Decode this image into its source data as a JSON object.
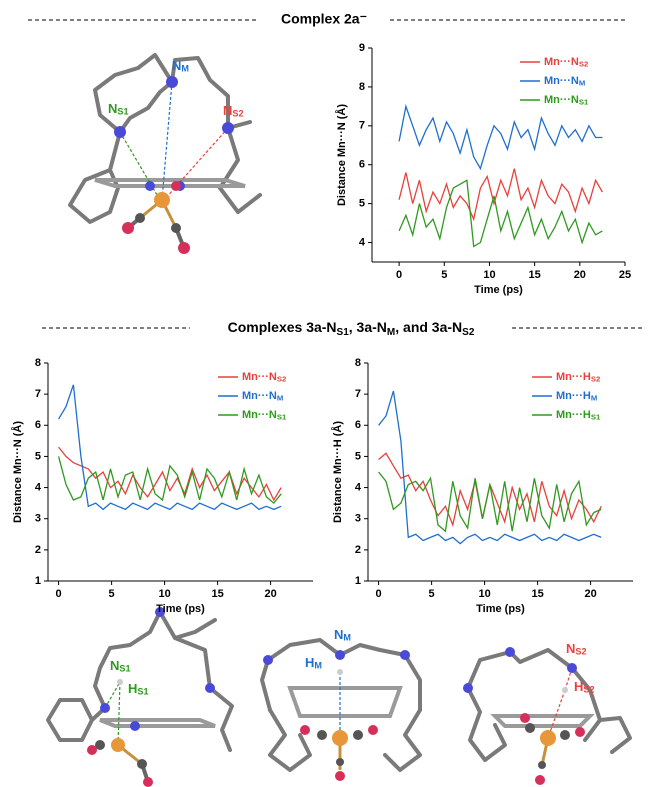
{
  "headers": {
    "top": "Complex 2a⁻",
    "middle": [
      "Complexes 3a-N",
      "S1",
      ", 3a-N",
      "M",
      ", and 3a-N",
      "S2"
    ]
  },
  "molecules": [
    {
      "labels": [
        "NM",
        "NS1",
        "NS2"
      ]
    },
    {
      "labels": [
        "NS1",
        "HS1"
      ]
    },
    {
      "labels": [
        "NM",
        "HM"
      ]
    },
    {
      "labels": [
        "NS2",
        "HS2"
      ]
    }
  ],
  "chart_data": [
    {
      "type": "line",
      "xlabel": "Time (ps)",
      "ylabel": "Distance Mn···N (Å)",
      "x": [
        0,
        0.75,
        1.5,
        2.25,
        3,
        3.75,
        4.5,
        5.25,
        6,
        6.75,
        7.5,
        8.25,
        9,
        9.75,
        10.5,
        11.25,
        12,
        12.75,
        13.5,
        14.25,
        15,
        15.75,
        16.5,
        17.25,
        18,
        18.75,
        19.5,
        20.25,
        21,
        21.75,
        22.5
      ],
      "xlim": [
        -3,
        25
      ],
      "xticks": [
        0,
        5,
        10,
        15,
        20,
        25
      ],
      "ylim": [
        3.5,
        9
      ],
      "yticks": [
        4,
        5,
        6,
        7,
        8,
        9
      ],
      "series": [
        {
          "name": "Mn···NS2",
          "color": "#e8413c",
          "values": [
            5.1,
            5.8,
            5.0,
            5.6,
            4.8,
            5.3,
            5.0,
            5.5,
            4.9,
            5.2,
            5.0,
            4.6,
            5.4,
            5.7,
            5.0,
            5.6,
            5.2,
            5.9,
            5.1,
            5.4,
            4.9,
            5.6,
            5.2,
            5.0,
            5.5,
            5.3,
            4.8,
            5.4,
            5.0,
            5.6,
            5.3
          ]
        },
        {
          "name": "Mn···NM",
          "color": "#1f6fd1",
          "values": [
            6.6,
            7.5,
            7.0,
            6.5,
            6.9,
            7.2,
            6.6,
            7.1,
            6.8,
            6.3,
            6.9,
            6.2,
            5.9,
            6.5,
            7.0,
            6.8,
            6.4,
            7.1,
            6.7,
            6.9,
            6.4,
            7.2,
            6.8,
            6.5,
            7.0,
            6.7,
            6.9,
            6.6,
            7.0,
            6.7,
            6.7
          ]
        },
        {
          "name": "Mn···NS1",
          "color": "#2e9a1e",
          "values": [
            4.3,
            4.7,
            4.2,
            5.0,
            4.4,
            4.6,
            4.1,
            4.9,
            5.4,
            5.5,
            5.6,
            3.9,
            4.0,
            4.6,
            5.2,
            4.3,
            4.8,
            4.1,
            4.5,
            4.9,
            4.2,
            4.6,
            4.1,
            4.4,
            4.8,
            4.3,
            4.6,
            4.0,
            4.5,
            4.2,
            4.3
          ]
        }
      ]
    },
    {
      "type": "line",
      "xlabel": "Time (ps)",
      "ylabel": "Distance Mn···N (Å)",
      "x": [
        0,
        0.7,
        1.4,
        2.1,
        2.8,
        3.5,
        4.2,
        4.9,
        5.6,
        6.3,
        7,
        7.7,
        8.4,
        9.1,
        9.8,
        10.5,
        11.2,
        11.9,
        12.6,
        13.3,
        14,
        14.7,
        15.4,
        16.1,
        16.8,
        17.5,
        18.2,
        18.9,
        19.6,
        20.3,
        21
      ],
      "xlim": [
        -1,
        24
      ],
      "xticks": [
        0,
        5,
        10,
        15,
        20
      ],
      "ylim": [
        1,
        8
      ],
      "yticks": [
        1,
        2,
        3,
        4,
        5,
        6,
        7,
        8
      ],
      "series": [
        {
          "name": "Mn···NS2",
          "color": "#e8413c",
          "values": [
            5.3,
            5.0,
            4.8,
            4.7,
            4.6,
            4.3,
            4.5,
            4.0,
            4.2,
            3.8,
            4.4,
            4.0,
            3.7,
            4.1,
            4.5,
            3.9,
            4.3,
            3.8,
            4.6,
            4.0,
            4.4,
            3.9,
            4.2,
            4.5,
            3.8,
            4.3,
            4.0,
            3.7,
            4.1,
            3.6,
            4.0
          ]
        },
        {
          "name": "Mn···NM",
          "color": "#1f6fd1",
          "values": [
            6.2,
            6.6,
            7.3,
            5.0,
            3.4,
            3.5,
            3.3,
            3.5,
            3.4,
            3.3,
            3.5,
            3.4,
            3.3,
            3.5,
            3.4,
            3.3,
            3.5,
            3.4,
            3.3,
            3.5,
            3.4,
            3.3,
            3.5,
            3.4,
            3.3,
            3.4,
            3.5,
            3.3,
            3.4,
            3.3,
            3.4
          ]
        },
        {
          "name": "Mn···NS1",
          "color": "#2e9a1e",
          "values": [
            5.0,
            4.1,
            3.6,
            3.7,
            4.3,
            4.5,
            3.6,
            4.6,
            3.7,
            4.4,
            4.5,
            3.6,
            4.6,
            3.8,
            3.6,
            4.7,
            4.4,
            3.7,
            4.5,
            3.6,
            4.6,
            4.3,
            3.7,
            4.5,
            3.6,
            4.6,
            3.8,
            4.4,
            3.7,
            3.5,
            3.8
          ]
        }
      ]
    },
    {
      "type": "line",
      "xlabel": "Time (ps)",
      "ylabel": "Distance Mn···H (Å)",
      "x": [
        0,
        0.7,
        1.4,
        2.1,
        2.8,
        3.5,
        4.2,
        4.9,
        5.6,
        6.3,
        7,
        7.7,
        8.4,
        9.1,
        9.8,
        10.5,
        11.2,
        11.9,
        12.6,
        13.3,
        14,
        14.7,
        15.4,
        16.1,
        16.8,
        17.5,
        18.2,
        18.9,
        19.6,
        20.3,
        21
      ],
      "xlim": [
        -1,
        24
      ],
      "xticks": [
        0,
        5,
        10,
        15,
        20
      ],
      "ylim": [
        1,
        8
      ],
      "yticks": [
        1,
        2,
        3,
        4,
        5,
        6,
        7,
        8
      ],
      "series": [
        {
          "name": "Mn···HS2",
          "color": "#e8413c",
          "values": [
            4.9,
            5.1,
            4.7,
            4.3,
            4.4,
            3.9,
            4.2,
            3.6,
            3.1,
            3.4,
            2.8,
            3.9,
            3.3,
            4.2,
            3.0,
            4.1,
            3.5,
            2.9,
            4.0,
            3.3,
            3.8,
            2.9,
            4.2,
            3.4,
            3.1,
            3.9,
            3.0,
            3.6,
            3.3,
            2.9,
            3.4
          ]
        },
        {
          "name": "Mn···HM",
          "color": "#1f6fd1",
          "values": [
            6.0,
            6.3,
            7.1,
            5.5,
            2.4,
            2.5,
            2.3,
            2.4,
            2.5,
            2.3,
            2.4,
            2.2,
            2.4,
            2.5,
            2.3,
            2.4,
            2.3,
            2.5,
            2.4,
            2.3,
            2.4,
            2.5,
            2.3,
            2.4,
            2.3,
            2.5,
            2.4,
            2.3,
            2.4,
            2.5,
            2.4
          ]
        },
        {
          "name": "Mn···HS1",
          "color": "#2e9a1e",
          "values": [
            4.5,
            4.2,
            3.3,
            3.5,
            4.1,
            4.2,
            3.9,
            4.3,
            2.8,
            2.6,
            4.2,
            3.1,
            2.7,
            4.3,
            3.0,
            4.1,
            2.8,
            4.2,
            2.6,
            4.0,
            2.9,
            4.3,
            3.1,
            2.7,
            4.1,
            2.9,
            3.8,
            4.2,
            2.8,
            3.2,
            3.3
          ]
        }
      ]
    }
  ]
}
